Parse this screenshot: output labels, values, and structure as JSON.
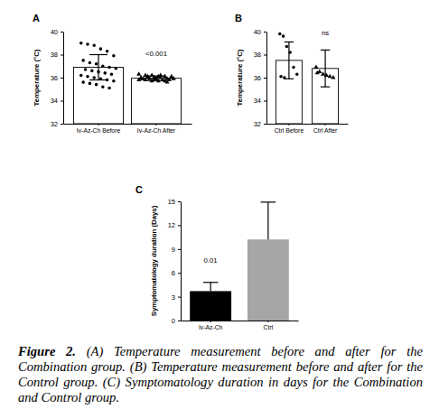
{
  "chart_data": [
    {
      "type": "bar",
      "title": "A",
      "categories": [
        "Iv-Az-Ch Before",
        "Iv-Az-Ch After"
      ],
      "values": [
        36.9,
        35.95
      ],
      "errors": [
        1.1,
        0.2
      ],
      "color": "#ffffff",
      "points": [
        {
          "marker": "circle",
          "values": [
            39.0,
            38.9,
            38.8,
            38.5,
            38.3,
            37.9,
            37.5,
            37.3,
            37.2,
            37.0,
            36.9,
            36.8,
            36.7,
            36.6,
            36.5,
            36.4,
            36.3,
            36.2,
            36.1,
            36.0,
            35.9,
            35.8,
            35.7,
            35.6,
            35.5,
            35.4,
            35.2,
            35.1
          ]
        },
        {
          "marker": "triangle",
          "values": [
            36.3,
            36.2,
            36.2,
            36.1,
            36.1,
            36.1,
            36.0,
            36.0,
            36.0,
            36.0,
            35.9,
            35.9,
            35.9,
            35.9,
            35.9,
            35.8,
            35.8,
            35.8,
            35.8,
            35.7,
            35.7,
            35.7,
            36.0,
            35.9,
            36.1,
            35.8,
            36.2,
            35.6
          ]
        }
      ],
      "ylabel": "Temperature (°C)",
      "ylim": [
        32,
        40
      ],
      "yticks": [
        32,
        34,
        36,
        38,
        40
      ],
      "annotations": [
        null,
        "<0.001"
      ]
    },
    {
      "type": "bar",
      "title": "B",
      "categories": [
        "Ctrl Before",
        "Ctrl After"
      ],
      "values": [
        37.5,
        36.8
      ],
      "errors": [
        1.6,
        1.6
      ],
      "color": "#ffffff",
      "points": [
        {
          "marker": "circle",
          "values": [
            39.8,
            39.6,
            38.7,
            38.2,
            36.9,
            36.3,
            36.1,
            36.0
          ]
        },
        {
          "marker": "triangle",
          "values": [
            36.9,
            36.5,
            36.3,
            36.2,
            36.1,
            36.0,
            36.4
          ]
        }
      ],
      "ylabel": "Temperature (°C)",
      "ylim": [
        32,
        40
      ],
      "yticks": [
        32,
        34,
        36,
        38,
        40
      ],
      "annotations": [
        null,
        "ns"
      ]
    },
    {
      "type": "bar",
      "title": "C",
      "categories": [
        "Iv-Az-Ch",
        "Ctrl"
      ],
      "values": [
        3.7,
        10.2
      ],
      "errors": [
        1.1,
        4.7
      ],
      "colors": [
        "#000000",
        "#a6a6a6"
      ],
      "ylabel": "Symptomatology duration (Days)",
      "ylim": [
        0,
        15
      ],
      "yticks": [
        0,
        3,
        6,
        9,
        12,
        15
      ],
      "annotations": [
        "0.01",
        null
      ]
    }
  ],
  "caption": {
    "label": "Figure 2.",
    "text": "(A) Temperature measurement before and after for the Combination group. (B) Temperature measurement before and after for the Control group. (C) Symptomatology duration in days for the Combination and Control group."
  }
}
